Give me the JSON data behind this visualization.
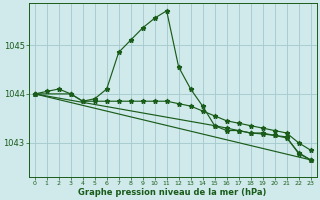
{
  "background_color": "#d0eaec",
  "grid_color": "#a8cdd0",
  "line_color": "#1a5c1a",
  "xlabel": "Graphe pression niveau de la mer (hPa)",
  "x_ticks": [
    0,
    1,
    2,
    3,
    4,
    5,
    6,
    7,
    8,
    9,
    10,
    11,
    12,
    13,
    14,
    15,
    16,
    17,
    18,
    19,
    20,
    21,
    22,
    23
  ],
  "y_ticks": [
    1043,
    1044,
    1045
  ],
  "ylim": [
    1042.3,
    1045.85
  ],
  "xlim": [
    -0.5,
    23.5
  ],
  "lines": [
    {
      "x": [
        0,
        3,
        4,
        5,
        6,
        7,
        8,
        9,
        10,
        11,
        12,
        13,
        14,
        15,
        16,
        17,
        18,
        19,
        20,
        21,
        22,
        23
      ],
      "y": [
        1044.0,
        1044.0,
        1043.85,
        1043.9,
        1044.1,
        1044.85,
        1045.1,
        1045.35,
        1045.55,
        1045.7,
        1044.55,
        1044.1,
        1043.75,
        1043.35,
        1043.25,
        1043.25,
        1043.2,
        1043.2,
        1043.15,
        1043.1,
        1042.8,
        1042.65
      ]
    },
    {
      "x": [
        0,
        1,
        2,
        3,
        4,
        5,
        6,
        7,
        8,
        9,
        10,
        11,
        12,
        13,
        14,
        15,
        16,
        17,
        18,
        19,
        20,
        21,
        22,
        23
      ],
      "y": [
        1044.0,
        1044.05,
        1044.1,
        1044.0,
        1043.85,
        1043.85,
        1043.85,
        1043.85,
        1043.85,
        1043.85,
        1043.85,
        1043.85,
        1043.8,
        1043.75,
        1043.65,
        1043.55,
        1043.45,
        1043.4,
        1043.35,
        1043.3,
        1043.25,
        1043.2,
        1043.0,
        1042.85
      ]
    },
    {
      "x": [
        0,
        23
      ],
      "y": [
        1044.0,
        1042.65
      ]
    },
    {
      "x": [
        0,
        15,
        16,
        17,
        18,
        19,
        20,
        21,
        22,
        23
      ],
      "y": [
        1044.0,
        1043.35,
        1043.3,
        1043.25,
        1043.2,
        1043.18,
        1043.15,
        1043.12,
        1042.78,
        1042.65
      ]
    }
  ]
}
